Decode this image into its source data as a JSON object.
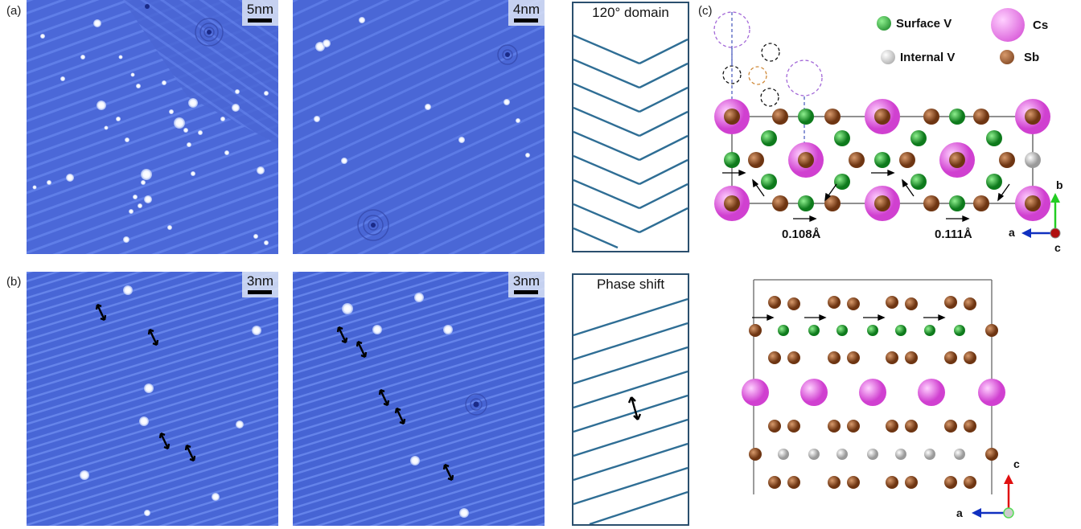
{
  "panels": {
    "a": {
      "label": "(a)"
    },
    "b": {
      "label": "(b)"
    },
    "c": {
      "label": "(c)"
    }
  },
  "stm_images": {
    "a1": {
      "scale_label": "5nm"
    },
    "a2": {
      "scale_label": "4nm"
    },
    "b1": {
      "scale_label": "3nm"
    },
    "b2": {
      "scale_label": "3nm"
    }
  },
  "schematics": {
    "domain": {
      "title": "120° domain"
    },
    "phase": {
      "title": "Phase shift"
    }
  },
  "legend": {
    "surface_v": {
      "label": "Surface V",
      "color": "#1aa62a"
    },
    "internal_v": {
      "label": "Internal V",
      "color": "#b9b9b9"
    },
    "cs": {
      "label": "Cs",
      "color": "#e064e0"
    },
    "sb": {
      "label": "Sb",
      "color": "#8a4a22"
    }
  },
  "displacements": {
    "left": "0.108Å",
    "right": "0.111Å"
  },
  "axes_top": {
    "b": "b",
    "a": "a",
    "c": "c"
  },
  "axes_bottom": {
    "c": "c",
    "a": "a"
  },
  "colors": {
    "stm_blue": "#4a66d6",
    "schematic_line": "#2f6e95",
    "frame": "#2b4f6e"
  }
}
